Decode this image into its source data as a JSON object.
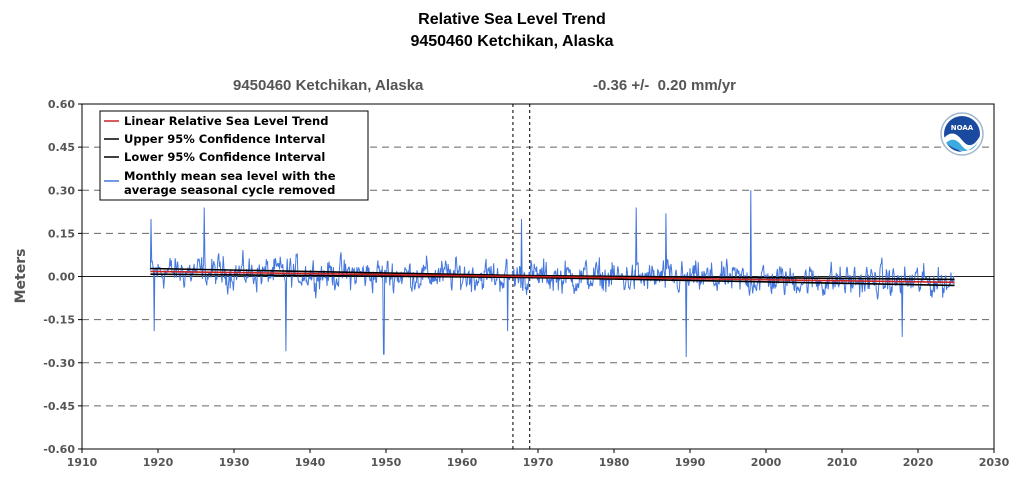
{
  "header": {
    "title_line1": "Relative Sea Level Trend",
    "title_line2": "9450460 Ketchikan, Alaska",
    "station": "9450460 Ketchikan, Alaska",
    "trend": "-0.36 +/-  0.20 mm/yr"
  },
  "logo": {
    "text": "NOAA",
    "icon": "noaa-logo"
  },
  "chart_data": {
    "type": "line",
    "title": "Relative Sea Level Trend",
    "subtitle": "9450460 Ketchikan, Alaska",
    "xlabel": "",
    "ylabel": "Meters",
    "xlim": [
      1910,
      2030
    ],
    "ylim": [
      -0.6,
      0.6
    ],
    "x_ticks": [
      "1910",
      "1920",
      "1930",
      "1940",
      "1950",
      "1960",
      "1970",
      "1980",
      "1990",
      "2000",
      "2010",
      "2020",
      "2030"
    ],
    "y_ticks": [
      "0.60",
      "0.45",
      "0.30",
      "0.15",
      "0.00",
      "-0.15",
      "-0.30",
      "-0.45",
      "-0.60"
    ],
    "grid": "horizontal dashed",
    "legend_position": "top-left",
    "legend": [
      "Linear Relative Sea Level Trend",
      "Upper 95% Confidence Interval",
      "Lower 95% Confidence Interval",
      "Monthly mean sea level with the",
      "average seasonal cycle removed"
    ],
    "trend_mm_per_yr": -0.36,
    "trend_ci_mm_per_yr": 0.2,
    "vertical_markers": [
      1966.7,
      1968.9
    ],
    "series": [
      {
        "name": "Linear Relative Sea Level Trend",
        "color": "#cc2222",
        "x": [
          1919,
          2024.8
        ],
        "y": [
          0.0178,
          -0.0203
        ]
      },
      {
        "name": "Upper 95% Confidence Interval",
        "color": "#000000",
        "x": [
          1919,
          1968,
          2024.8
        ],
        "y": [
          0.028,
          0.003,
          -0.01
        ]
      },
      {
        "name": "Lower 95% Confidence Interval",
        "color": "#000000",
        "x": [
          1919,
          1968,
          2024.8
        ],
        "y": [
          0.008,
          -0.003,
          -0.031
        ]
      },
      {
        "name": "Monthly mean sea level with the average seasonal cycle removed",
        "color": "#4477dd",
        "x_start": 1919.0,
        "x_end": 2024.8,
        "points_per_year": 12,
        "amplitude_m": 0.07,
        "peaks": [
          [
            1919.1,
            0.2
          ],
          [
            1919.5,
            -0.19
          ],
          [
            1926.1,
            0.24
          ],
          [
            1936.8,
            -0.26
          ],
          [
            1949.7,
            -0.27
          ],
          [
            1966.0,
            -0.19
          ],
          [
            1967.8,
            0.2
          ],
          [
            1982.9,
            0.24
          ],
          [
            1986.8,
            0.22
          ],
          [
            1989.5,
            -0.28
          ],
          [
            1998.0,
            0.3
          ],
          [
            2017.9,
            -0.21
          ]
        ]
      }
    ]
  }
}
